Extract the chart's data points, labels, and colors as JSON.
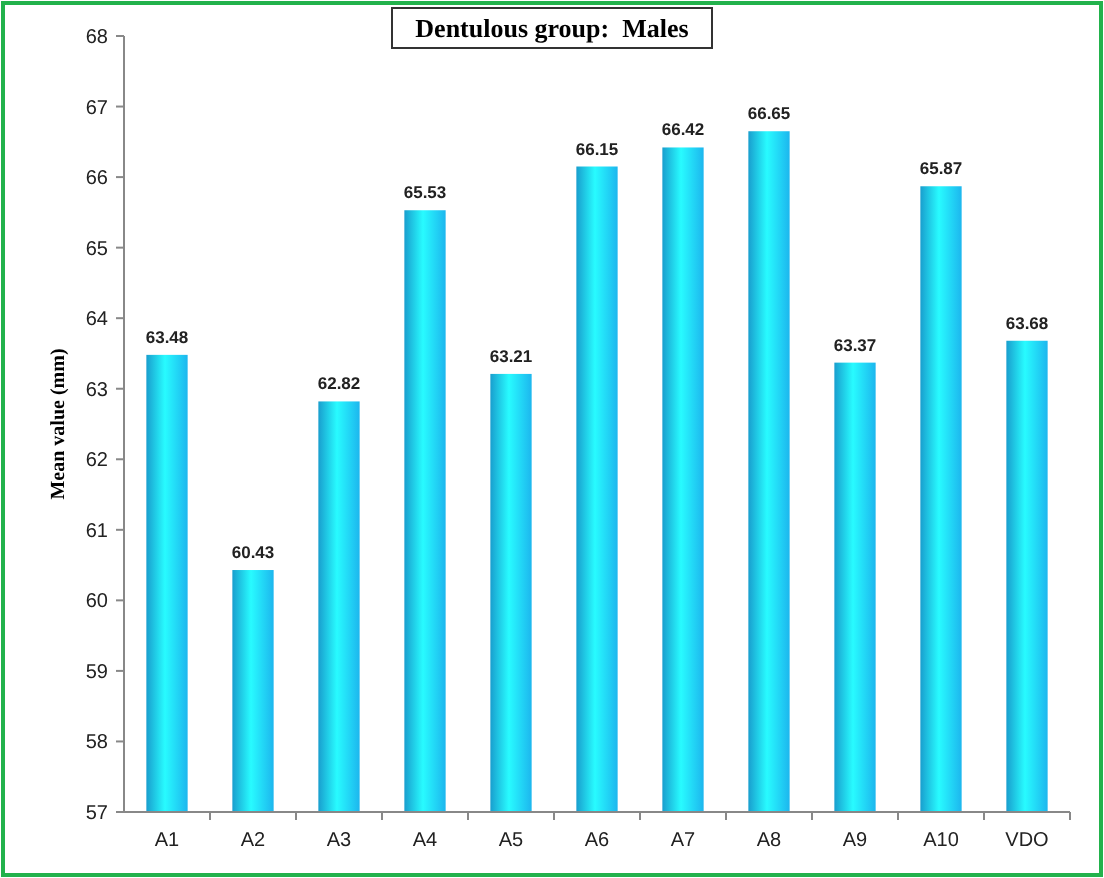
{
  "chart_data": {
    "type": "bar",
    "title": "Dentulous group:  Males",
    "ylabel": "Mean value (mm)",
    "categories": [
      "A1",
      "A2",
      "A3",
      "A4",
      "A5",
      "A6",
      "A7",
      "A8",
      "A9",
      "A10",
      "VDO"
    ],
    "values": [
      63.48,
      60.43,
      62.82,
      65.53,
      63.21,
      66.15,
      66.42,
      66.65,
      63.37,
      65.87,
      63.68
    ],
    "color": "#1db6ee",
    "ylim": [
      57,
      68
    ],
    "yticks": [
      57,
      58,
      59,
      60,
      61,
      62,
      63,
      64,
      65,
      66,
      67,
      68
    ],
    "grid": false,
    "data_labels": true
  }
}
